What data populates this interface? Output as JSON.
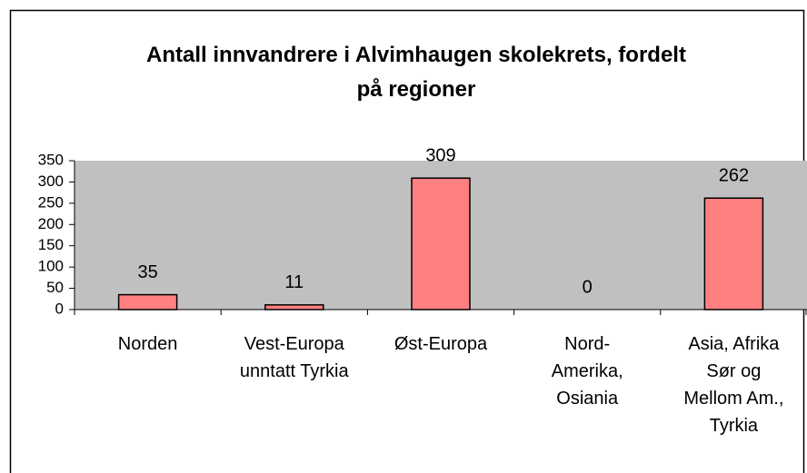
{
  "chart_data": {
    "type": "bar",
    "title": "Antall innvandrere i Alvimhaugen skolekrets, fordelt\npå regioner",
    "categories": [
      "Norden",
      "Vest-Europa\nunntatt Tyrkia",
      "Øst-Europa",
      "Nord-\nAmerika,\nOsiania",
      "Asia, Afrika\nSør og\nMellom Am.,\nTyrkia"
    ],
    "values": [
      35,
      11,
      309,
      0,
      262
    ],
    "color": "#ff8080",
    "ylim": [
      0,
      350
    ],
    "yticks": [
      0,
      50,
      100,
      150,
      200,
      250,
      300,
      350
    ],
    "plot_background": "#c0c0c0",
    "grid": false
  }
}
